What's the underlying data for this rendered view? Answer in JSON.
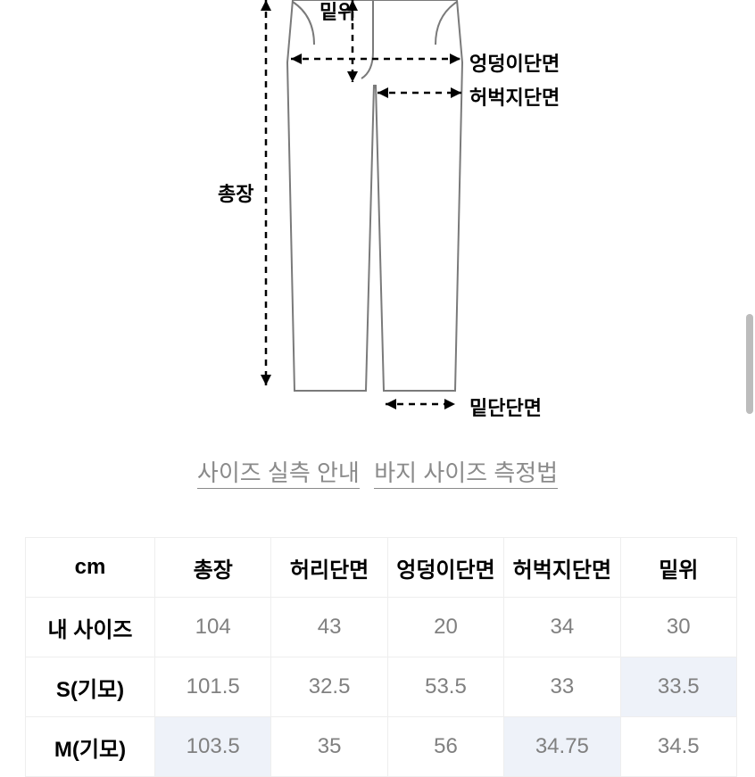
{
  "diagram": {
    "labels": {
      "rise": "밑위",
      "hip": "엉덩이단면",
      "thigh": "허벅지단면",
      "length": "총장",
      "hem": "밑단단면"
    },
    "stroke_main": "#7a7a7a",
    "stroke_dash": "#000000",
    "stroke_width_main": 2,
    "stroke_width_dash": 2.5,
    "dash_pattern": "7 6"
  },
  "links": {
    "guide": "사이즈 실측 안내",
    "howto": "바지 사이즈 측정법",
    "color": "#8a8a8a",
    "fontsize": 26
  },
  "table": {
    "unit_header": "cm",
    "columns": [
      "총장",
      "허리단면",
      "엉덩이단면",
      "허벅지단면",
      "밑위"
    ],
    "rows": [
      {
        "label": "내 사이즈",
        "values": [
          "104",
          "43",
          "20",
          "34",
          "30"
        ],
        "highlight": [
          false,
          false,
          false,
          false,
          false
        ]
      },
      {
        "label": "S(기모)",
        "values": [
          "101.5",
          "32.5",
          "53.5",
          "33",
          "33.5"
        ],
        "highlight": [
          false,
          false,
          false,
          false,
          true
        ]
      },
      {
        "label": "M(기모)",
        "values": [
          "103.5",
          "35",
          "56",
          "34.75",
          "34.5"
        ],
        "highlight": [
          true,
          false,
          false,
          true,
          false
        ]
      }
    ],
    "border_color": "#eeeeee",
    "value_color": "#808080",
    "highlight_bg": "#eef2f9",
    "fontsize": 25
  },
  "scrollbar": {
    "color": "#bcbcbc"
  }
}
